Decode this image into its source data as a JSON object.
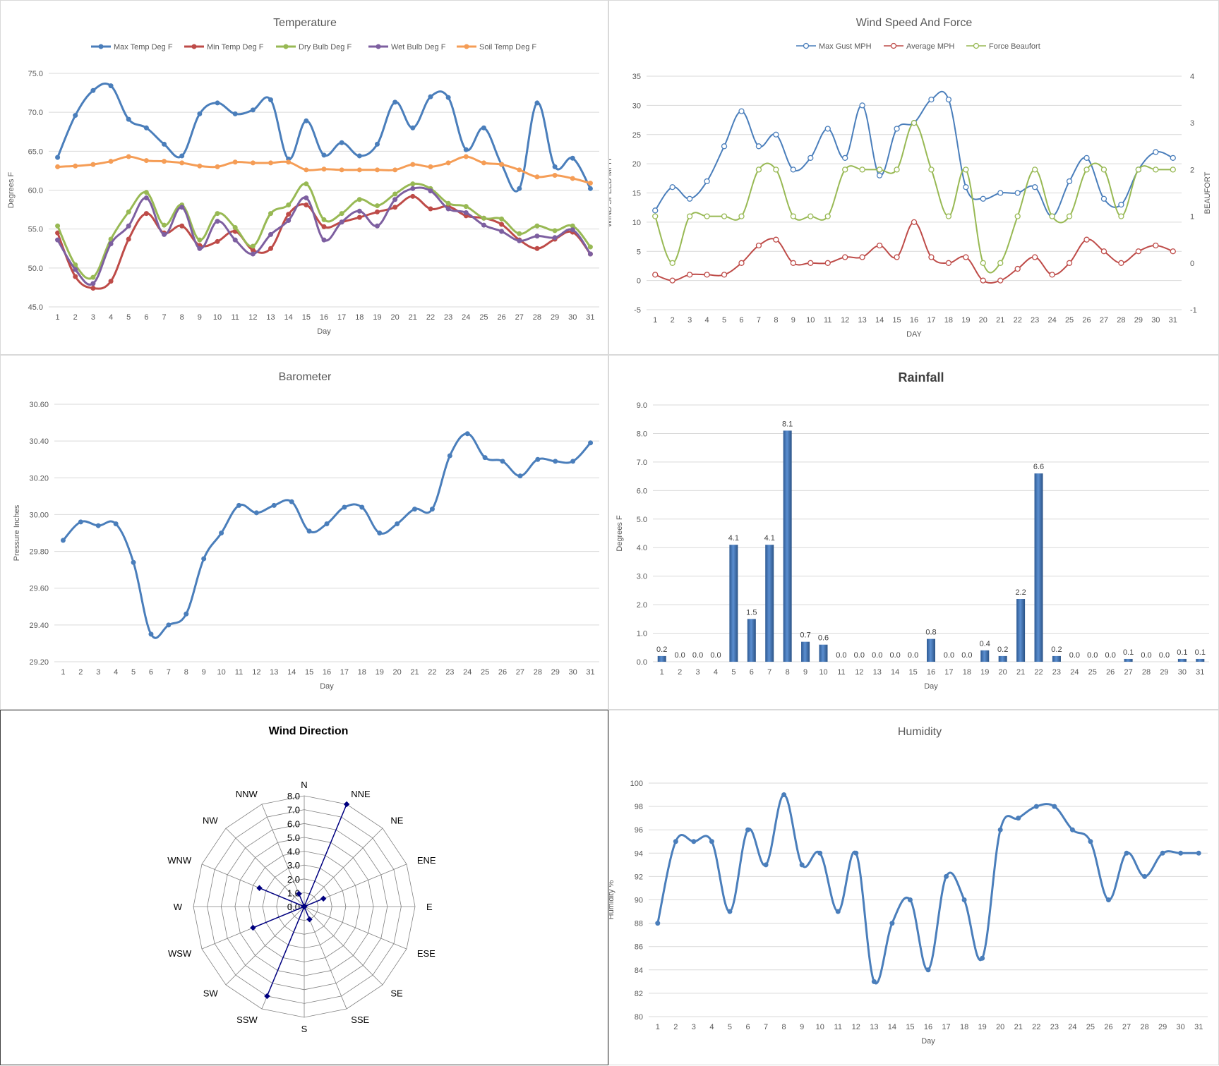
{
  "chart_data": [
    {
      "id": "temp",
      "type": "line",
      "title": "Temperature",
      "xlabel": "Day",
      "ylabel": "Degrees F",
      "ylim": [
        45,
        75
      ],
      "yticks": [
        "45.0",
        "50.0",
        "55.0",
        "60.0",
        "65.0",
        "70.0",
        "75.0"
      ],
      "x": [
        "1",
        "2",
        "3",
        "4",
        "5",
        "6",
        "7",
        "8",
        "9",
        "10",
        "11",
        "12",
        "13",
        "14",
        "15",
        "16",
        "17",
        "18",
        "19",
        "20",
        "21",
        "22",
        "23",
        "24",
        "25",
        "26",
        "27",
        "28",
        "29",
        "30",
        "31"
      ],
      "legend": "top",
      "grid": true,
      "series": [
        {
          "name": "Max Temp Deg F",
          "color": "#4a7ebb",
          "values": [
            64.2,
            69.6,
            72.8,
            73.4,
            69.1,
            68.0,
            65.9,
            64.4,
            69.8,
            71.2,
            69.8,
            70.3,
            71.6,
            64.0,
            68.9,
            64.5,
            66.1,
            64.4,
            65.9,
            71.3,
            68.0,
            72.0,
            71.9,
            65.2,
            68.0,
            63.3,
            60.2,
            71.2,
            63.0,
            64.1,
            60.2
          ]
        },
        {
          "name": "Min Temp Deg F",
          "color": "#be4b48",
          "values": [
            54.5,
            48.9,
            47.4,
            48.3,
            53.7,
            57.0,
            54.5,
            55.4,
            52.9,
            53.4,
            54.7,
            52.3,
            52.5,
            56.9,
            58.1,
            55.3,
            55.9,
            56.5,
            57.2,
            57.8,
            59.2,
            57.6,
            57.9,
            56.7,
            56.4,
            55.6,
            53.6,
            52.5,
            53.7,
            54.6,
            51.8
          ]
        },
        {
          "name": "Dry Bulb Deg F",
          "color": "#98b954",
          "values": [
            55.4,
            50.4,
            48.8,
            53.7,
            57.2,
            59.7,
            55.5,
            58.1,
            53.6,
            57.0,
            55.2,
            52.8,
            57.0,
            58.1,
            60.8,
            56.2,
            57.0,
            58.8,
            58.0,
            59.5,
            60.8,
            60.2,
            58.3,
            57.9,
            56.4,
            56.3,
            54.4,
            55.4,
            54.8,
            55.4,
            52.7
          ]
        },
        {
          "name": "Wet Bulb Deg F",
          "color": "#7d5fa0",
          "values": [
            53.6,
            49.8,
            48.0,
            53.1,
            55.4,
            59.0,
            54.3,
            57.8,
            52.5,
            56.0,
            53.6,
            51.8,
            54.3,
            56.1,
            59.0,
            53.6,
            55.9,
            57.3,
            55.4,
            58.8,
            60.2,
            59.9,
            57.6,
            57.1,
            55.5,
            54.7,
            53.5,
            54.1,
            53.9,
            54.9,
            51.8
          ]
        },
        {
          "name": "Soil Temp Deg F",
          "color": "#f59d56",
          "values": [
            63.0,
            63.1,
            63.3,
            63.7,
            64.3,
            63.8,
            63.7,
            63.5,
            63.1,
            63.0,
            63.6,
            63.5,
            63.5,
            63.6,
            62.6,
            62.7,
            62.6,
            62.6,
            62.6,
            62.6,
            63.3,
            63.0,
            63.5,
            64.3,
            63.5,
            63.3,
            62.6,
            61.7,
            61.9,
            61.5,
            60.9
          ]
        }
      ]
    },
    {
      "id": "wind",
      "type": "line",
      "title": "Wind Speed And Force",
      "xlabel": "DAY",
      "ylabel": "WIND SPEED MPH",
      "y2label": "BEAUFORT",
      "ylim": [
        -5,
        35
      ],
      "y2lim": [
        -1,
        4
      ],
      "yticks": [
        "-5",
        "0",
        "5",
        "10",
        "15",
        "20",
        "25",
        "30",
        "35"
      ],
      "y2ticks": [
        "-1",
        "0",
        "1",
        "2",
        "3",
        "4"
      ],
      "x": [
        "1",
        "2",
        "3",
        "4",
        "5",
        "6",
        "7",
        "8",
        "9",
        "10",
        "11",
        "12",
        "13",
        "14",
        "15",
        "16",
        "17",
        "18",
        "19",
        "20",
        "21",
        "22",
        "23",
        "24",
        "25",
        "26",
        "27",
        "28",
        "29",
        "30",
        "31"
      ],
      "legend": "top",
      "grid": true,
      "series": [
        {
          "name": "Max Gust MPH",
          "color": "#4a7ebb",
          "axis": "left",
          "values": [
            12,
            16,
            14,
            17,
            23,
            29,
            23,
            25,
            19,
            21,
            26,
            21,
            30,
            18,
            26,
            27,
            31,
            31,
            16,
            14,
            15,
            15,
            16,
            11,
            17,
            21,
            14,
            13,
            19,
            22,
            21
          ]
        },
        {
          "name": "Average MPH",
          "color": "#be4b48",
          "axis": "left",
          "values": [
            1,
            0,
            1,
            1,
            1,
            3,
            6,
            7,
            3,
            3,
            3,
            4,
            4,
            6,
            4,
            10,
            4,
            3,
            4,
            0,
            0,
            2,
            4,
            1,
            3,
            7,
            5,
            3,
            5,
            6,
            5
          ]
        },
        {
          "name": "Force Beaufort",
          "color": "#98b954",
          "axis": "right",
          "values": [
            1,
            0,
            1,
            1,
            1,
            1,
            2,
            2,
            1,
            1,
            1,
            2,
            2,
            2,
            2,
            3,
            2,
            1,
            2,
            0,
            0,
            1,
            2,
            1,
            1,
            2,
            2,
            1,
            2,
            2,
            2
          ]
        }
      ]
    },
    {
      "id": "baro",
      "type": "line",
      "title": "Barometer",
      "xlabel": "Day",
      "ylabel": "Pressure Inches",
      "ylim": [
        29.2,
        30.6
      ],
      "yticks": [
        "29.20",
        "29.40",
        "29.60",
        "29.80",
        "30.00",
        "30.20",
        "30.40",
        "30.60"
      ],
      "x": [
        "1",
        "2",
        "3",
        "4",
        "5",
        "6",
        "7",
        "8",
        "9",
        "10",
        "11",
        "12",
        "13",
        "14",
        "15",
        "16",
        "17",
        "18",
        "19",
        "20",
        "21",
        "22",
        "23",
        "24",
        "25",
        "26",
        "27",
        "28",
        "29",
        "30",
        "31"
      ],
      "grid": true,
      "series": [
        {
          "name": "",
          "color": "#4a7ebb",
          "values": [
            29.86,
            29.96,
            29.94,
            29.95,
            29.74,
            29.35,
            29.4,
            29.46,
            29.76,
            29.9,
            30.05,
            30.01,
            30.05,
            30.07,
            29.91,
            29.95,
            30.04,
            30.04,
            29.9,
            29.95,
            30.03,
            30.03,
            30.32,
            30.44,
            30.31,
            30.29,
            30.21,
            30.3,
            30.29,
            30.29,
            30.39
          ]
        }
      ]
    },
    {
      "id": "rain",
      "type": "bar",
      "title": "Rainfall",
      "xlabel": "Day",
      "ylabel": "Degrees F",
      "ylim": [
        0,
        9
      ],
      "yticks": [
        "0.0",
        "1.0",
        "2.0",
        "3.0",
        "4.0",
        "5.0",
        "6.0",
        "7.0",
        "8.0",
        "9.0"
      ],
      "categories": [
        "1",
        "2",
        "3",
        "4",
        "5",
        "6",
        "7",
        "8",
        "9",
        "10",
        "11",
        "12",
        "13",
        "14",
        "15",
        "16",
        "17",
        "18",
        "19",
        "20",
        "21",
        "22",
        "23",
        "24",
        "25",
        "26",
        "27",
        "28",
        "29",
        "30",
        "31"
      ],
      "values": [
        0.2,
        0.0,
        0.0,
        0.0,
        4.1,
        1.5,
        4.1,
        8.1,
        0.7,
        0.6,
        0.0,
        0.0,
        0.0,
        0.0,
        0.0,
        0.8,
        0.0,
        0.0,
        0.4,
        0.2,
        2.2,
        6.6,
        0.2,
        0.0,
        0.0,
        0.0,
        0.1,
        0.0,
        0.0,
        0.1,
        0.1
      ],
      "labels": [
        "0.2",
        "0.0",
        "0.0",
        "0.0",
        "4.1",
        "1.5",
        "4.1",
        "8.1",
        "0.7",
        "0.6",
        "0.0",
        "0.0",
        "0.0",
        "0.0",
        "0.0",
        "0.8",
        "0.0",
        "0.0",
        "0.4",
        "0.2",
        "2.2",
        "6.6",
        "0.2",
        "0.0",
        "0.0",
        "0.0",
        "0.1",
        "0.0",
        "0.0",
        "0.1",
        "0.1"
      ],
      "color": "#4a7ebb",
      "grid": true
    },
    {
      "id": "dir",
      "type": "radar",
      "title": "Wind Direction",
      "categories": [
        "N",
        "NNE",
        "NE",
        "ENE",
        "E",
        "ESE",
        "SE",
        "SSE",
        "S",
        "SSW",
        "SW",
        "WSW",
        "W",
        "WNW",
        "NW",
        "NNW"
      ],
      "rmax": 8,
      "rticks": [
        "0.0",
        "1.0",
        "2.0",
        "3.0",
        "4.0",
        "5.0",
        "6.0",
        "7.0",
        "8.0"
      ],
      "values": [
        0,
        8,
        0,
        1.5,
        0,
        0,
        0,
        1,
        0,
        7,
        0,
        4,
        0,
        3.5,
        0,
        1
      ],
      "color": "#000080"
    },
    {
      "id": "hum",
      "type": "line",
      "title": "Humidity",
      "xlabel": "Day",
      "ylabel": "Humidity %",
      "ylim": [
        80,
        100
      ],
      "yticks": [
        "80",
        "82",
        "84",
        "86",
        "88",
        "90",
        "92",
        "94",
        "96",
        "98",
        "100"
      ],
      "x": [
        "1",
        "2",
        "3",
        "4",
        "5",
        "6",
        "7",
        "8",
        "9",
        "10",
        "11",
        "12",
        "13",
        "14",
        "15",
        "16",
        "17",
        "18",
        "19",
        "20",
        "21",
        "22",
        "23",
        "24",
        "25",
        "26",
        "27",
        "28",
        "29",
        "30",
        "31"
      ],
      "grid": true,
      "series": [
        {
          "name": "",
          "color": "#4a7ebb",
          "values": [
            88,
            95,
            95,
            95,
            89,
            96,
            93,
            99,
            93,
            94,
            89,
            94,
            83,
            88,
            90,
            84,
            92,
            90,
            85,
            96,
            97,
            98,
            98,
            96,
            95,
            90,
            94,
            92,
            94,
            94,
            94
          ]
        }
      ]
    }
  ]
}
